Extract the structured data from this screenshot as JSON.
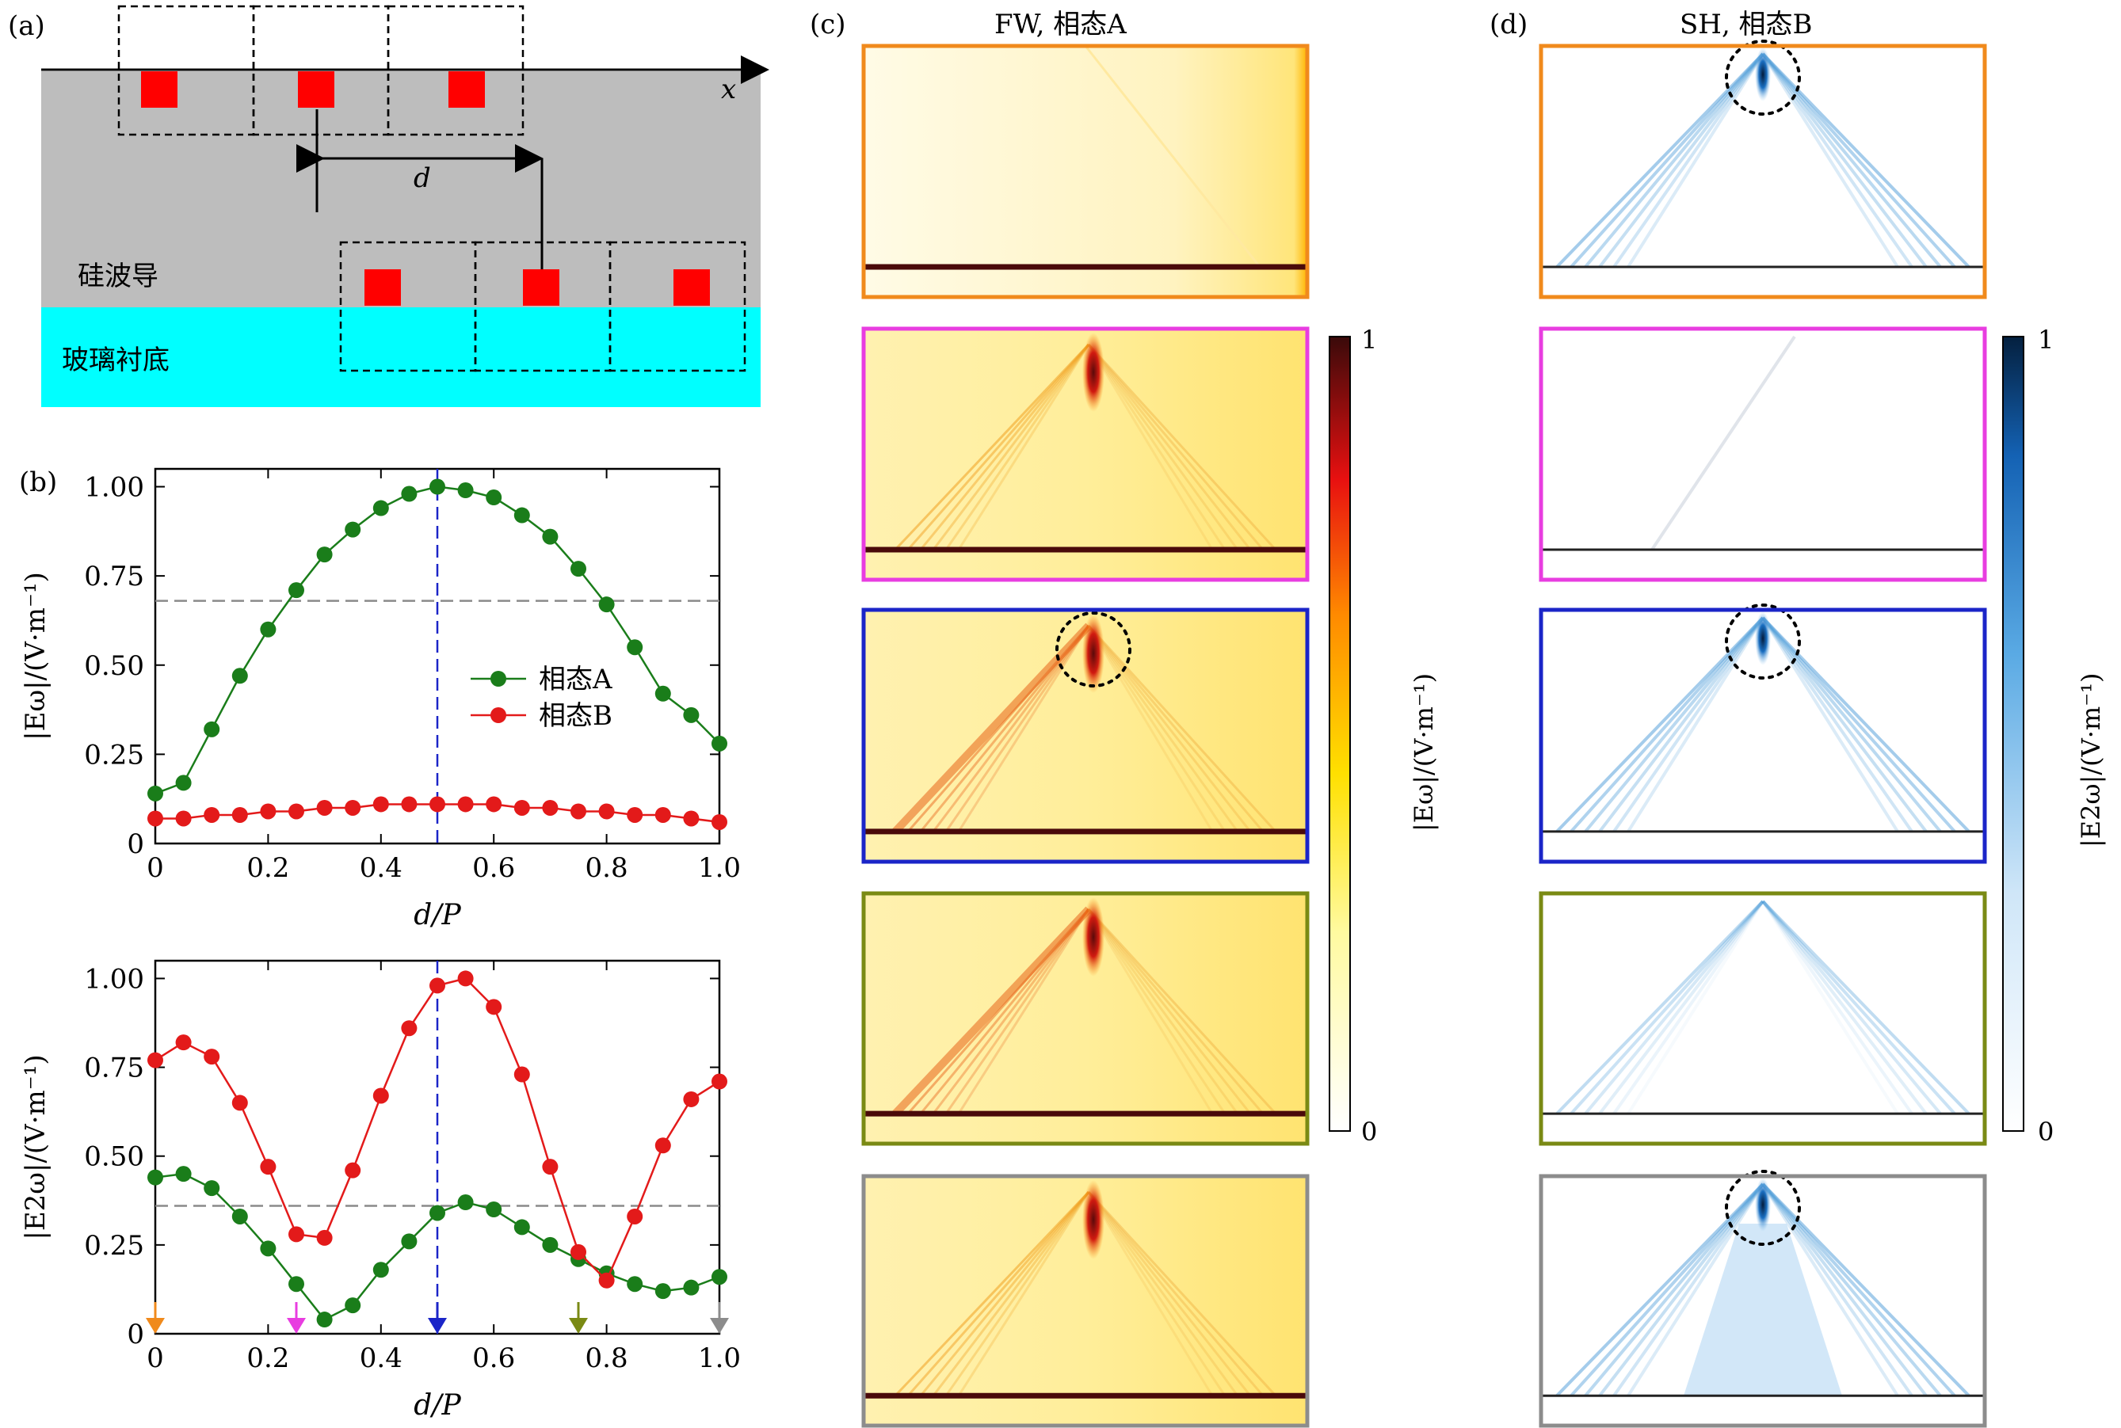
{
  "panel_labels": {
    "a": "(a)",
    "b": "(b)",
    "c": "(c)",
    "d": "(d)"
  },
  "schematic": {
    "x_axis_label": "x",
    "distance_label": "d",
    "waveguide_label": "硅波导",
    "substrate_label": "玻璃衬底",
    "colors": {
      "waveguide": "#bdbdbd",
      "substrate": "#00ffff",
      "scatterer": "#ff0000"
    }
  },
  "panel_c_title": "FW, 相态A",
  "panel_d_title": "SH, 相态B",
  "colorbars": {
    "fw": {
      "top": "1",
      "bottom": "0",
      "label": "|Eω|/(V·m⁻¹)"
    },
    "sh": {
      "top": "1",
      "bottom": "0",
      "label": "|E2ω|/(V·m⁻¹)"
    }
  },
  "map_frame_colors": [
    "#f08a1c",
    "#e83de0",
    "#1b25c8",
    "#7a8a14",
    "#8c8c8c"
  ],
  "chart_data": [
    {
      "type": "line",
      "xlabel": "d/P",
      "ylabel": "|Eω|/(V·m⁻¹)",
      "xlim": [
        0,
        1.0
      ],
      "ylim": [
        0,
        1.05
      ],
      "xticks": [
        "0",
        "0.2",
        "0.4",
        "0.6",
        "0.8",
        "1.0"
      ],
      "yticks": [
        "0",
        "0.25",
        "0.50",
        "0.75",
        "1.00"
      ],
      "x": [
        0,
        0.05,
        0.1,
        0.15,
        0.2,
        0.25,
        0.3,
        0.35,
        0.4,
        0.45,
        0.5,
        0.55,
        0.6,
        0.65,
        0.7,
        0.75,
        0.8,
        0.85,
        0.9,
        0.95,
        1.0
      ],
      "series": [
        {
          "name": "相态A",
          "color": "#1a7d1a",
          "values": [
            0.14,
            0.17,
            0.32,
            0.47,
            0.6,
            0.71,
            0.81,
            0.88,
            0.94,
            0.98,
            1.0,
            0.99,
            0.97,
            0.92,
            0.86,
            0.77,
            0.67,
            0.55,
            0.42,
            0.36,
            0.28
          ]
        },
        {
          "name": "相态B",
          "color": "#e31a1a",
          "values": [
            0.07,
            0.07,
            0.08,
            0.08,
            0.09,
            0.09,
            0.1,
            0.1,
            0.11,
            0.11,
            0.11,
            0.11,
            0.11,
            0.1,
            0.1,
            0.09,
            0.09,
            0.08,
            0.08,
            0.07,
            0.06
          ]
        }
      ],
      "hline": 0.68,
      "vline": 0.5,
      "legend": "center-right"
    },
    {
      "type": "line",
      "xlabel": "d/P",
      "ylabel": "|E2ω|/(V·m⁻¹)",
      "xlim": [
        0,
        1.0
      ],
      "ylim": [
        0,
        1.05
      ],
      "xticks": [
        "0",
        "0.2",
        "0.4",
        "0.6",
        "0.8",
        "1.0"
      ],
      "yticks": [
        "0",
        "0.25",
        "0.50",
        "0.75",
        "1.00"
      ],
      "x": [
        0,
        0.05,
        0.1,
        0.15,
        0.2,
        0.25,
        0.3,
        0.35,
        0.4,
        0.45,
        0.5,
        0.55,
        0.6,
        0.65,
        0.7,
        0.75,
        0.8,
        0.85,
        0.9,
        0.95,
        1.0
      ],
      "series": [
        {
          "name": "相态A",
          "color": "#1a7d1a",
          "values": [
            0.44,
            0.45,
            0.41,
            0.33,
            0.24,
            0.14,
            0.04,
            0.08,
            0.18,
            0.26,
            0.34,
            0.37,
            0.35,
            0.3,
            0.25,
            0.21,
            0.17,
            0.14,
            0.12,
            0.13,
            0.16
          ]
        },
        {
          "name": "相态B",
          "color": "#e31a1a",
          "values": [
            0.77,
            0.82,
            0.78,
            0.65,
            0.47,
            0.28,
            0.27,
            0.46,
            0.67,
            0.86,
            0.98,
            1.0,
            0.92,
            0.73,
            0.47,
            0.23,
            0.15,
            0.33,
            0.53,
            0.66,
            0.71
          ]
        }
      ],
      "hline": 0.36,
      "vline": 0.5,
      "markers": [
        {
          "x": 0,
          "color": "#f08a1c"
        },
        {
          "x": 0.25,
          "color": "#e83de0"
        },
        {
          "x": 0.5,
          "color": "#1b25c8"
        },
        {
          "x": 0.75,
          "color": "#7a8a14"
        },
        {
          "x": 1.0,
          "color": "#8c8c8c"
        }
      ]
    }
  ]
}
